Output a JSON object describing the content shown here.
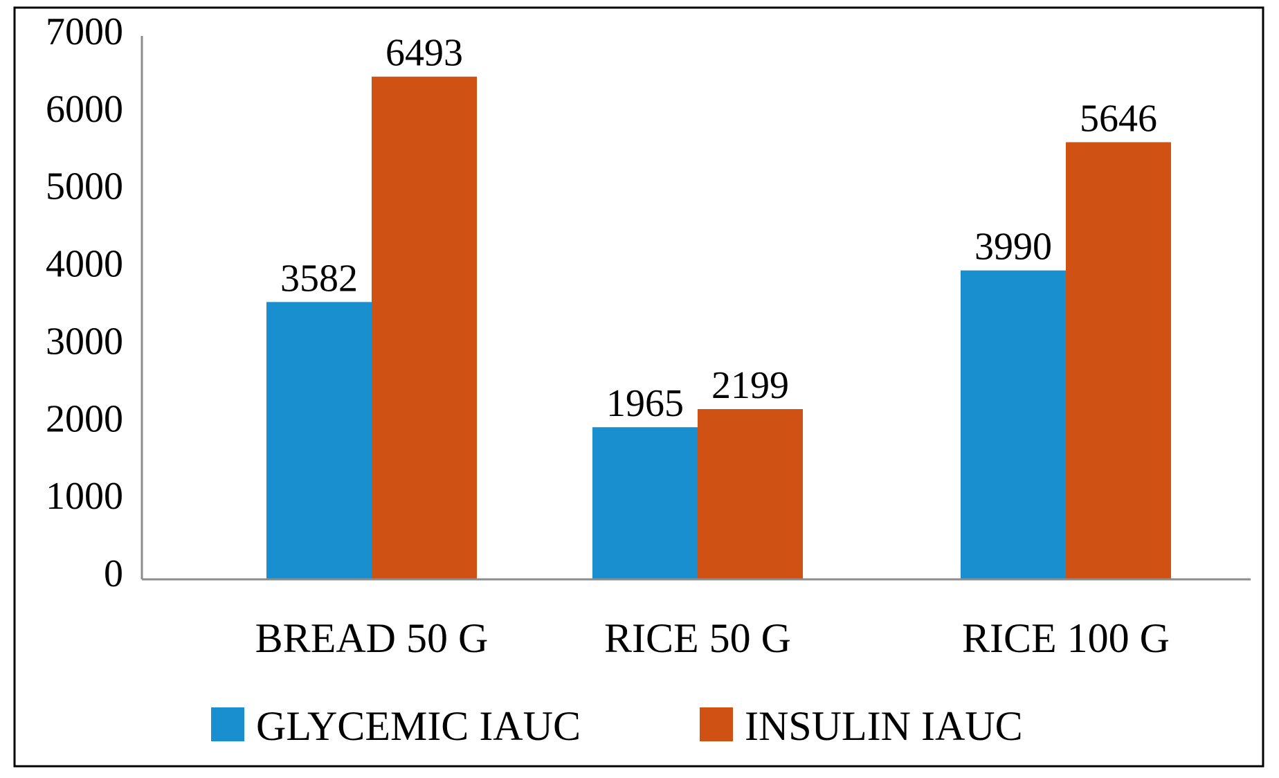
{
  "chart_data": {
    "type": "bar",
    "title": "",
    "xlabel": "",
    "ylabel": "",
    "categories": [
      "BREAD 50 G",
      "RICE 50 G",
      "RICE 100 G"
    ],
    "series": [
      {
        "name": "GLYCEMIC IAUC",
        "color": "#1a8fd0",
        "values": [
          3582,
          1965,
          3990
        ]
      },
      {
        "name": "INSULIN IAUC",
        "color": "#cf5214",
        "values": [
          6493,
          2199,
          5646
        ]
      }
    ],
    "ylim": [
      0,
      7000
    ],
    "yticks": [
      0,
      1000,
      2000,
      3000,
      4000,
      5000,
      6000,
      7000
    ],
    "ytick_labels": [
      "0",
      "1000",
      "2000",
      "3000",
      "4000",
      "5000",
      "6000",
      "7000"
    ],
    "data_labels": [
      [
        "3582",
        "1965",
        "3990"
      ],
      [
        "6493",
        "2199",
        "5646"
      ]
    ],
    "grid": false,
    "legend_position": "bottom"
  }
}
